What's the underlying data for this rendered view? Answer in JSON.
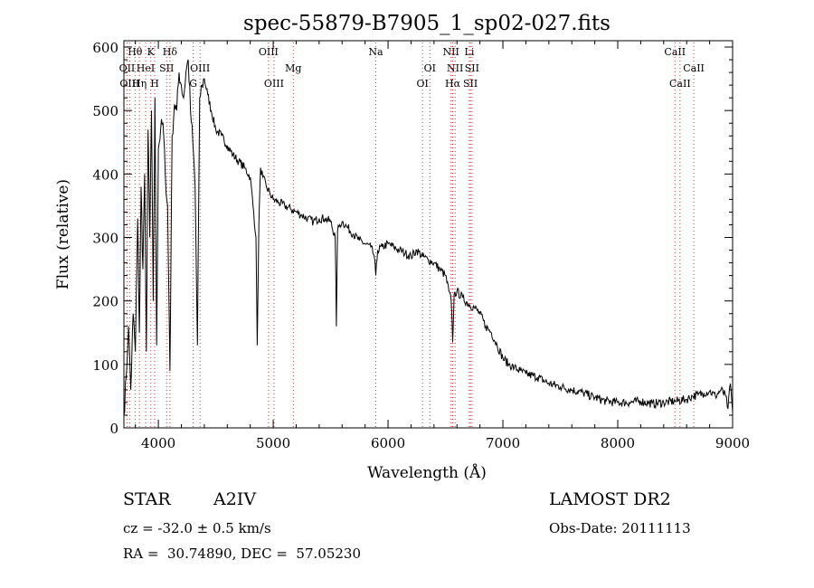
{
  "chart_data": {
    "type": "line",
    "title": "spec-55879-B7905_1_sp02-027.fits",
    "xlabel": "Wavelength (Å)",
    "ylabel": "Flux (relative)",
    "xlim": [
      3700,
      9000
    ],
    "ylim": [
      0,
      610
    ],
    "xticks": [
      4000,
      5000,
      6000,
      7000,
      8000,
      9000
    ],
    "yticks": [
      0,
      100,
      200,
      300,
      400,
      500,
      600
    ],
    "line_color": "#000000",
    "marker_color": "#cc3333",
    "series": [
      {
        "x": [
          3700,
          3720,
          3740,
          3760,
          3780,
          3800,
          3820,
          3835,
          3850,
          3865,
          3880,
          3895,
          3910,
          3925,
          3940,
          3955,
          3970,
          3985,
          4000,
          4020,
          4040,
          4060,
          4080,
          4101,
          4120,
          4140,
          4160,
          4180,
          4200,
          4220,
          4240,
          4260,
          4280,
          4300,
          4320,
          4340,
          4360,
          4380,
          4400,
          4430,
          4460,
          4500,
          4550,
          4600,
          4650,
          4700,
          4750,
          4800,
          4830,
          4850,
          4861,
          4875,
          4890,
          4910,
          4940,
          4970,
          5000,
          5050,
          5100,
          5150,
          5200,
          5250,
          5300,
          5350,
          5400,
          5450,
          5500,
          5540,
          5550,
          5560,
          5580,
          5600,
          5650,
          5700,
          5750,
          5800,
          5850,
          5880,
          5893,
          5910,
          5950,
          6000,
          6050,
          6100,
          6150,
          6200,
          6250,
          6300,
          6350,
          6400,
          6450,
          6500,
          6530,
          6550,
          6563,
          6575,
          6600,
          6650,
          6700,
          6750,
          6800,
          6850,
          6900,
          6950,
          7000,
          7050,
          7100,
          7150,
          7200,
          7300,
          7400,
          7500,
          7600,
          7700,
          7800,
          7900,
          8000,
          8100,
          8200,
          8300,
          8400,
          8500,
          8600,
          8650,
          8700,
          8750,
          8800,
          8850,
          8900,
          8940,
          8960,
          8980,
          9000
        ],
        "y": [
          20,
          80,
          160,
          60,
          180,
          120,
          330,
          150,
          380,
          250,
          400,
          120,
          470,
          300,
          500,
          200,
          520,
          130,
          440,
          470,
          480,
          400,
          350,
          90,
          460,
          510,
          500,
          560,
          540,
          520,
          560,
          580,
          500,
          450,
          380,
          130,
          520,
          540,
          550,
          525,
          500,
          470,
          460,
          445,
          430,
          420,
          410,
          395,
          340,
          300,
          130,
          320,
          410,
          395,
          380,
          370,
          360,
          355,
          350,
          345,
          340,
          335,
          330,
          325,
          330,
          330,
          325,
          300,
          160,
          310,
          320,
          325,
          315,
          305,
          295,
          290,
          285,
          270,
          240,
          280,
          285,
          290,
          285,
          280,
          275,
          270,
          280,
          270,
          265,
          260,
          250,
          240,
          215,
          200,
          135,
          210,
          215,
          205,
          195,
          190,
          180,
          160,
          150,
          130,
          110,
          100,
          95,
          90,
          85,
          80,
          70,
          65,
          60,
          55,
          48,
          42,
          40,
          40,
          42,
          38,
          40,
          42,
          45,
          50,
          52,
          55,
          58,
          50,
          60,
          50,
          30,
          70,
          25
        ]
      }
    ],
    "line_markers": [
      {
        "label": "Hθ",
        "x": 3797,
        "row": 1
      },
      {
        "label": "K",
        "x": 3934,
        "row": 1
      },
      {
        "label": "Hδ",
        "x": 4101,
        "row": 1
      },
      {
        "label": "OIII",
        "x": 4959,
        "row": 1
      },
      {
        "label": "Na",
        "x": 5893,
        "row": 1
      },
      {
        "label": "NII",
        "x": 6548,
        "row": 1
      },
      {
        "label": "Li",
        "x": 6708,
        "row": 1
      },
      {
        "label": "CaII",
        "x": 8498,
        "row": 1
      },
      {
        "label": "OII",
        "x": 3727,
        "row": 2
      },
      {
        "label": "HeI",
        "x": 3889,
        "row": 2
      },
      {
        "label": "SII",
        "x": 4072,
        "row": 2
      },
      {
        "label": "OIII",
        "x": 4363,
        "row": 2
      },
      {
        "label": "Mg",
        "x": 5175,
        "row": 2
      },
      {
        "label": "OI",
        "x": 6364,
        "row": 2
      },
      {
        "label": "NII",
        "x": 6584,
        "row": 2
      },
      {
        "label": "SII",
        "x": 6731,
        "row": 2
      },
      {
        "label": "CaII",
        "x": 8662,
        "row": 2
      },
      {
        "label": "OIII",
        "x": 3750,
        "row": 3
      },
      {
        "label": "Hη",
        "x": 3835,
        "row": 3
      },
      {
        "label": "H",
        "x": 3968,
        "row": 3
      },
      {
        "label": "G",
        "x": 4304,
        "row": 3
      },
      {
        "label": "OIII",
        "x": 5007,
        "row": 3
      },
      {
        "label": "OI",
        "x": 6300,
        "row": 3
      },
      {
        "label": "Hα",
        "x": 6563,
        "row": 3
      },
      {
        "label": "SII",
        "x": 6717,
        "row": 3
      },
      {
        "label": "CaII",
        "x": 8542,
        "row": 3
      }
    ]
  },
  "info": {
    "object_class": "STAR",
    "subclass": "A2IV",
    "survey": "LAMOST DR2",
    "cz": "cz = -32.0 ± 0.5 km/s",
    "obs_date": "Obs-Date: 20111113",
    "coords": "RA =  30.74890, DEC =  57.05230"
  }
}
